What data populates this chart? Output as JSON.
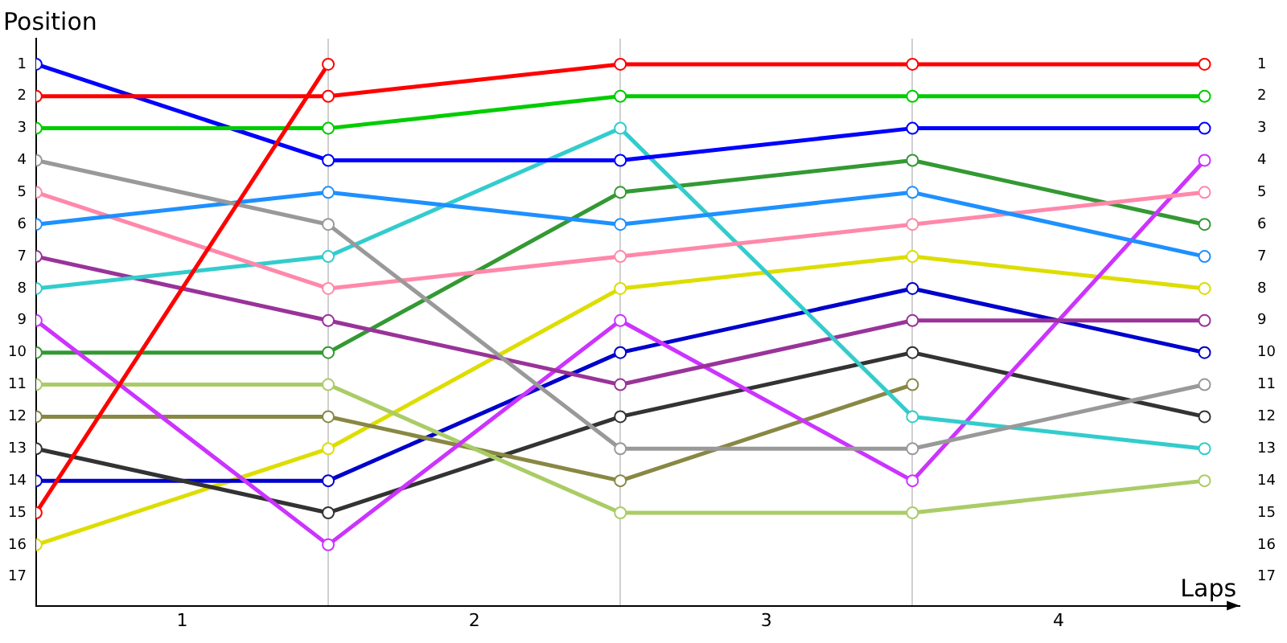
{
  "chart_data": {
    "type": "line",
    "xlabel": "Laps",
    "ylabel": "Position",
    "x": [
      0,
      1,
      2,
      3,
      4
    ],
    "xlim": [
      0,
      4.12
    ],
    "xticks": [
      {
        "value": 0.5,
        "label": "1"
      },
      {
        "value": 1,
        "label": null
      },
      {
        "value": 1.5,
        "label": "2"
      },
      {
        "value": 2,
        "label": null
      },
      {
        "value": 2.5,
        "label": "3"
      },
      {
        "value": 3,
        "label": null
      },
      {
        "value": 3.5,
        "label": "4"
      }
    ],
    "ylim": [
      17.9,
      0.2
    ],
    "yticks": [
      1,
      2,
      3,
      4,
      5,
      6,
      7,
      8,
      9,
      10,
      11,
      12,
      13,
      14,
      15,
      16,
      17
    ],
    "y2lim": [
      17.9,
      0.2
    ],
    "y2ticks": [
      1,
      2,
      3,
      4,
      5,
      6,
      7,
      8,
      9,
      10,
      11,
      12,
      13,
      14,
      15,
      16,
      17
    ],
    "grid": "x",
    "legend": false,
    "marker": "circle",
    "line_style": "solid",
    "series": [
      {
        "color": "#ff0000",
        "values": [
          2,
          2,
          1,
          1,
          1
        ]
      },
      {
        "color": "#ff0000",
        "values": [
          15,
          1,
          null,
          null,
          null
        ]
      },
      {
        "color": "#00cc00",
        "values": [
          3,
          3,
          2,
          2,
          2
        ]
      },
      {
        "color": "#0000ff",
        "values": [
          1,
          4,
          4,
          3,
          3
        ]
      },
      {
        "color": "#999999",
        "values": [
          4,
          6,
          13,
          13,
          11
        ]
      },
      {
        "color": "#1e90ff",
        "values": [
          6,
          5,
          6,
          5,
          7
        ]
      },
      {
        "color": "#ff88aa",
        "values": [
          5,
          8,
          7,
          6,
          5
        ]
      },
      {
        "color": "#33cccc",
        "values": [
          8,
          7,
          3,
          12,
          13
        ]
      },
      {
        "color": "#993399",
        "values": [
          7,
          9,
          11,
          9,
          9
        ]
      },
      {
        "color": "#cc33ff",
        "values": [
          9,
          16,
          9,
          14,
          4
        ]
      },
      {
        "color": "#339933",
        "values": [
          10,
          10,
          5,
          4,
          6
        ]
      },
      {
        "color": "#aacc66",
        "values": [
          11,
          11,
          15,
          15,
          14
        ]
      },
      {
        "color": "#888844",
        "values": [
          12,
          12,
          14,
          11,
          null
        ]
      },
      {
        "color": "#333333",
        "values": [
          13,
          15,
          12,
          10,
          12
        ]
      },
      {
        "color": "#0000cc",
        "values": [
          14,
          14,
          10,
          8,
          10
        ]
      },
      {
        "color": "#dddd00",
        "values": [
          16,
          13,
          8,
          7,
          8
        ]
      }
    ]
  }
}
